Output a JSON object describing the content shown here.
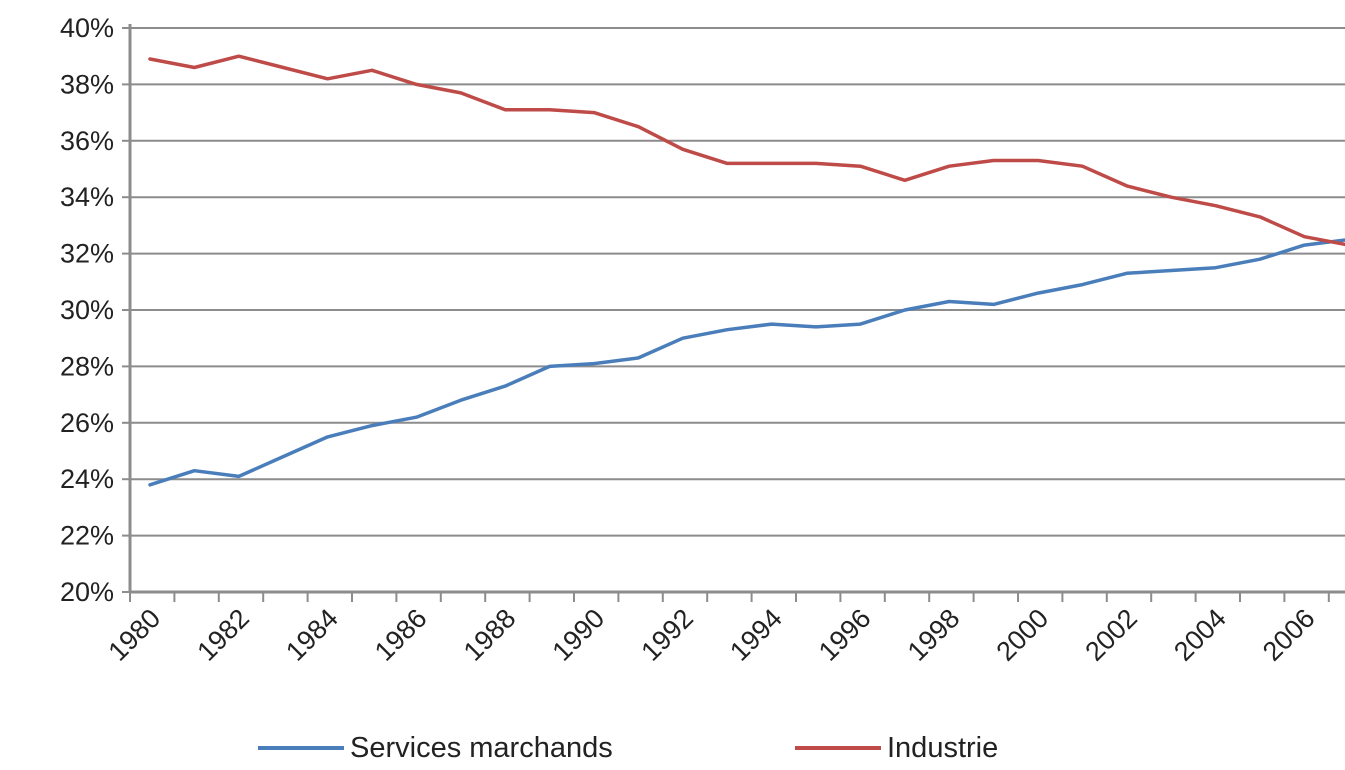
{
  "chart_data": {
    "type": "line",
    "title": "",
    "xlabel": "",
    "ylabel": "",
    "x": [
      1980,
      1981,
      1982,
      1983,
      1984,
      1985,
      1986,
      1987,
      1988,
      1989,
      1990,
      1991,
      1992,
      1993,
      1994,
      1995,
      1996,
      1997,
      1998,
      1999,
      2000,
      2001,
      2002,
      2003,
      2004,
      2005,
      2006,
      2007
    ],
    "x_tick_labels": [
      "1980",
      "1982",
      "1984",
      "1986",
      "1988",
      "1990",
      "1992",
      "1994",
      "1996",
      "1998",
      "2000",
      "2002",
      "2004",
      "2006"
    ],
    "y_tick_labels": [
      "20%",
      "22%",
      "24%",
      "26%",
      "28%",
      "30%",
      "32%",
      "34%",
      "36%",
      "38%",
      "40%"
    ],
    "ylim": [
      20,
      40
    ],
    "grid": true,
    "legend_position": "bottom",
    "series": [
      {
        "name": "Services marchands",
        "color": "#4a7ebb",
        "values": [
          23.8,
          24.3,
          24.1,
          24.8,
          25.5,
          25.9,
          26.2,
          26.8,
          27.3,
          28.0,
          28.1,
          28.3,
          29.0,
          29.3,
          29.5,
          29.4,
          29.5,
          30.0,
          30.3,
          30.2,
          30.6,
          30.9,
          31.3,
          31.4,
          31.5,
          31.8,
          32.3,
          32.5
        ]
      },
      {
        "name": "Industrie",
        "color": "#be4b48",
        "values": [
          38.9,
          38.6,
          39.0,
          38.6,
          38.2,
          38.5,
          38.0,
          37.7,
          37.1,
          37.1,
          37.0,
          36.5,
          35.7,
          35.2,
          35.2,
          35.2,
          35.1,
          34.6,
          35.1,
          35.3,
          35.3,
          35.1,
          34.4,
          34.0,
          33.7,
          33.3,
          32.6,
          32.3
        ]
      }
    ]
  }
}
